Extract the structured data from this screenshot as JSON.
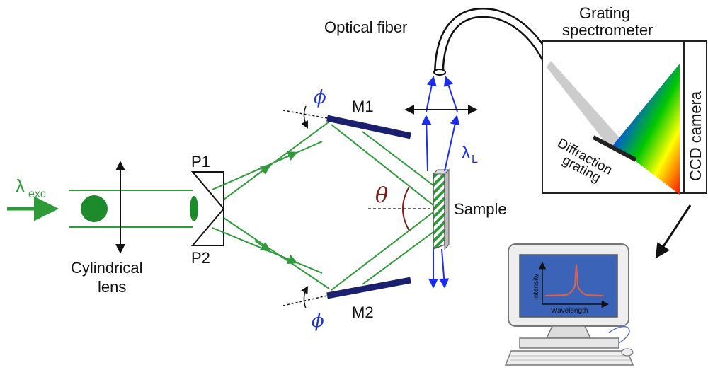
{
  "labels": {
    "excitation_lambda": "λ",
    "excitation_sub": "exc",
    "cylindrical_lens_line1": "Cylindrical",
    "cylindrical_lens_line2": "lens",
    "prism_1": "P1",
    "prism_2": "P2",
    "mirror_1": "M1",
    "mirror_2": "M2",
    "phi_top": "ϕ",
    "phi_bottom": "ϕ",
    "theta": "θ",
    "sample": "Sample",
    "laser_lambda": "λ",
    "laser_sub": "L",
    "optical_fiber": "Optical fiber",
    "grating_spectrometer_line1": "Grating",
    "grating_spectrometer_line2": "spectrometer",
    "diffraction_grating_line1": "Diffraction",
    "diffraction_grating_line2": "grating",
    "ccd_camera": "CCD camera",
    "plot_ylabel": "Intensity",
    "plot_xlabel": "Wavelength"
  },
  "colors": {
    "beam": "#2e9a3a",
    "beam_fill": "#1d8a2c",
    "scatter": "#1b2cf0",
    "mirror": "#1a1f6e",
    "greek_phi": "#2233cc",
    "theta": "#7a1f1f",
    "monitor_screen": "#3b64b8",
    "plot_line": "#e0604a"
  },
  "icons": [
    "cylindrical-lens-icon",
    "prism-icon",
    "mirror-icon",
    "sample-icon",
    "optical-fiber-icon",
    "spectrometer-icon",
    "computer-icon"
  ]
}
